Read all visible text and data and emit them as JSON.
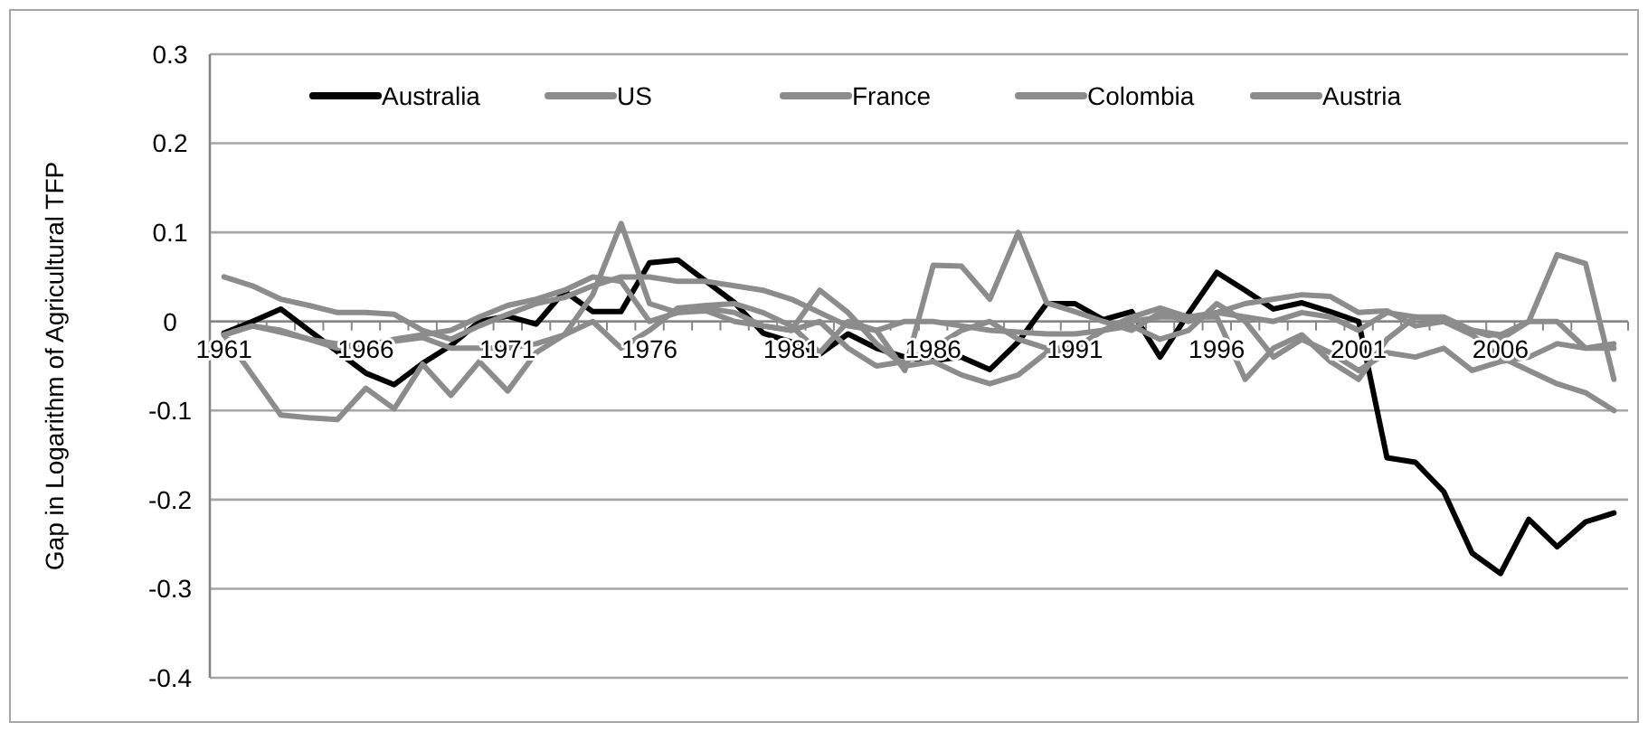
{
  "chart_data": {
    "type": "line",
    "ylabel": "Gap in Logarithm of Agricultural TFP",
    "categories": [
      "1961",
      null,
      null,
      null,
      null,
      "1966",
      null,
      null,
      null,
      null,
      "1971",
      null,
      null,
      null,
      null,
      "1976",
      null,
      null,
      null,
      null,
      "1981",
      null,
      null,
      null,
      null,
      "1986",
      null,
      null,
      null,
      null,
      "1991",
      null,
      null,
      null,
      null,
      "1996",
      null,
      null,
      null,
      null,
      "2001",
      null,
      null,
      null,
      null,
      "2006",
      null,
      null,
      null,
      null
    ],
    "ylim": [
      -0.4,
      0.3
    ],
    "yticks": [
      -0.4,
      -0.3,
      -0.2,
      -0.1,
      {
        "value": 0,
        "label": "0"
      },
      0.1,
      0.2,
      0.3
    ],
    "grid": "y",
    "legend": "top",
    "marker": "none",
    "line_style": "solid",
    "series": [
      {
        "name": "Australia",
        "color": "#000000",
        "values": [
          -0.013,
          0.0,
          0.014,
          -0.01,
          -0.034,
          -0.058,
          -0.071,
          -0.047,
          -0.027,
          0.0,
          0.006,
          -0.003,
          0.034,
          0.011,
          0.011,
          0.066,
          0.069,
          0.045,
          0.021,
          -0.013,
          -0.023,
          -0.037,
          -0.014,
          -0.03,
          -0.04,
          -0.044,
          -0.04,
          -0.054,
          -0.023,
          0.02,
          0.02,
          0.002,
          0.011,
          -0.04,
          0.009,
          0.055,
          0.035,
          0.014,
          0.021,
          0.011,
          0.0,
          -0.153,
          -0.158,
          -0.191,
          -0.26,
          -0.283,
          -0.222,
          -0.253,
          -0.225,
          -0.215
        ]
      },
      {
        "name": "US",
        "color": "#8c8c8c",
        "values": [
          -0.015,
          -0.06,
          -0.105,
          -0.108,
          -0.11,
          -0.075,
          -0.098,
          -0.048,
          -0.083,
          -0.045,
          -0.078,
          -0.035,
          -0.015,
          0.03,
          0.11,
          0.02,
          0.01,
          0.012,
          0.0,
          -0.005,
          -0.01,
          0.035,
          0.01,
          -0.025,
          -0.05,
          -0.045,
          -0.06,
          -0.07,
          -0.06,
          -0.035,
          -0.03,
          -0.01,
          0.005,
          0.015,
          0.005,
          0.005,
          -0.065,
          -0.03,
          -0.015,
          -0.045,
          -0.065,
          -0.02,
          0.005,
          0.005,
          -0.01,
          -0.02,
          0.0,
          0.0,
          -0.03,
          -0.03
        ]
      },
      {
        "name": "France",
        "color": "#8c8c8c",
        "values": [
          0.05,
          0.04,
          0.025,
          0.018,
          0.01,
          0.01,
          0.008,
          -0.01,
          -0.02,
          -0.005,
          0.008,
          0.02,
          0.027,
          0.04,
          0.05,
          0.05,
          0.045,
          0.045,
          0.04,
          0.035,
          0.025,
          0.01,
          -0.005,
          -0.01,
          0.0,
          0.0,
          -0.005,
          -0.01,
          -0.012,
          -0.014,
          -0.014,
          -0.01,
          0.0,
          0.005,
          0.005,
          0.01,
          0.02,
          0.025,
          0.03,
          0.028,
          0.01,
          0.012,
          -0.005,
          0.0,
          -0.015,
          -0.04,
          -0.055,
          -0.07,
          -0.08,
          -0.1
        ]
      },
      {
        "name": "Colombia",
        "color": "#8c8c8c",
        "values": [
          -0.015,
          -0.005,
          -0.012,
          -0.02,
          -0.03,
          -0.025,
          -0.022,
          -0.018,
          -0.03,
          -0.03,
          -0.03,
          -0.025,
          -0.015,
          0.0,
          -0.03,
          -0.01,
          0.015,
          0.018,
          0.02,
          0.01,
          -0.005,
          -0.035,
          0.0,
          -0.01,
          -0.055,
          0.063,
          0.062,
          0.025,
          0.1,
          0.021,
          0.011,
          0.0,
          -0.01,
          0.01,
          0.0,
          0.01,
          0.005,
          0.0,
          0.01,
          0.005,
          -0.01,
          0.01,
          0.005,
          0.0,
          -0.01,
          -0.015,
          0.0,
          0.075,
          0.065,
          -0.065
        ]
      },
      {
        "name": "Austria",
        "color": "#8c8c8c",
        "values": [
          -0.015,
          -0.005,
          -0.01,
          -0.02,
          -0.025,
          -0.03,
          -0.02,
          -0.015,
          -0.01,
          0.005,
          0.018,
          0.025,
          0.035,
          0.05,
          0.045,
          0.0,
          0.01,
          0.015,
          0.01,
          -0.005,
          -0.01,
          0.0,
          -0.03,
          -0.05,
          -0.045,
          -0.03,
          -0.01,
          0.0,
          -0.02,
          -0.03,
          -0.03,
          -0.01,
          -0.005,
          -0.02,
          -0.01,
          0.02,
          0.0,
          -0.04,
          -0.02,
          -0.035,
          -0.055,
          -0.035,
          -0.04,
          -0.03,
          -0.055,
          -0.045,
          -0.04,
          -0.025,
          -0.03,
          -0.025
        ]
      }
    ]
  }
}
